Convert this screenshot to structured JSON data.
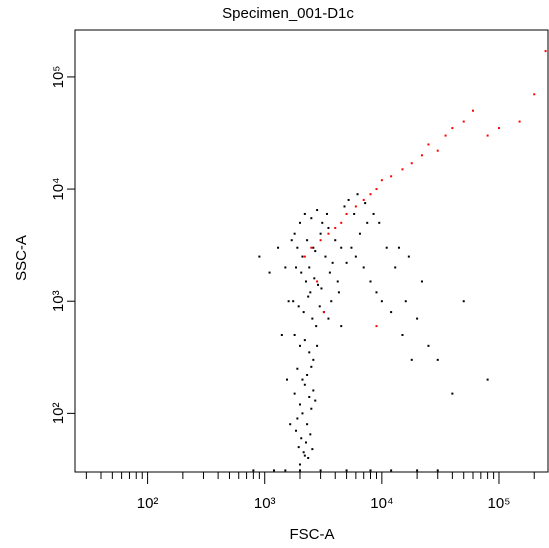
{
  "chart_data": {
    "type": "scatter",
    "title": "Specimen_001-D1c",
    "x_label": "FSC-A",
    "y_label": "SSC-A",
    "log_x": true,
    "log_y": true,
    "xlim": [
      24,
      262144
    ],
    "ylim": [
      30,
      262144
    ],
    "xticks": [
      {
        "value": 100,
        "label": "10²"
      },
      {
        "value": 1000,
        "label": "10³"
      },
      {
        "value": 10000,
        "label": "10⁴"
      },
      {
        "value": 100000,
        "label": "10⁵"
      }
    ],
    "xminorticks": [
      30,
      40,
      50,
      60,
      70,
      80,
      90,
      200,
      300,
      400,
      500,
      600,
      700,
      800,
      900,
      2000,
      3000,
      4000,
      5000,
      6000,
      7000,
      8000,
      9000,
      20000,
      30000,
      40000,
      50000,
      60000,
      70000,
      80000,
      90000,
      200000
    ],
    "yticks": [
      {
        "value": 100,
        "label": "10²"
      },
      {
        "value": 1000,
        "label": "10³"
      },
      {
        "value": 10000,
        "label": "10⁴"
      },
      {
        "value": 100000,
        "label": "10⁵"
      }
    ],
    "series": [
      {
        "color": "#000000",
        "x": [
          1800,
          2000,
          2200,
          2500,
          2800,
          3100,
          3500,
          4000,
          1900,
          2300,
          2600,
          3000,
          3400,
          1700,
          2100,
          2400,
          2700,
          3300,
          3800,
          4500,
          1850,
          2050,
          2250,
          2450,
          2650,
          2850,
          3050,
          3600,
          4200,
          5000,
          1750,
          1950,
          2150,
          2350,
          2550,
          2750,
          2950,
          3200,
          3700,
          4300,
          1800,
          2000,
          2200,
          2400,
          2600,
          2800,
          1900,
          2100,
          2300,
          2500,
          1800,
          2000,
          2200,
          2400,
          2600,
          2100,
          1900,
          2300,
          2500,
          2700,
          1850,
          2050,
          2250,
          2450,
          2150,
          1950,
          2350,
          2550,
          2000,
          2200,
          5500,
          6000,
          7000,
          8000,
          9000,
          10000,
          12000,
          15000,
          18000,
          22000,
          6500,
          7500,
          8500,
          11000,
          13000,
          16000,
          20000,
          25000,
          30000,
          40000,
          4800,
          5200,
          5800,
          6200,
          7200,
          9500,
          14000,
          17000,
          50000,
          80000,
          800,
          1200,
          2000,
          3000,
          5000,
          8000,
          12000,
          20000,
          30000,
          1500,
          1300,
          1500,
          1600,
          1400,
          1550,
          1650,
          900,
          1100,
          3500,
          4500
        ],
        "values": [
          4000,
          5000,
          6000,
          5500,
          6500,
          5000,
          4500,
          3500,
          3000,
          3500,
          3000,
          4000,
          6000,
          3500,
          2500,
          2000,
          2800,
          2500,
          2200,
          3000,
          2000,
          1800,
          1500,
          1200,
          1600,
          1400,
          1300,
          1800,
          1500,
          2200,
          1000,
          900,
          800,
          1100,
          700,
          600,
          900,
          800,
          1000,
          1200,
          500,
          400,
          450,
          350,
          300,
          400,
          250,
          200,
          220,
          260,
          150,
          120,
          180,
          140,
          160,
          100,
          90,
          80,
          110,
          130,
          70,
          60,
          55,
          65,
          45,
          50,
          40,
          48,
          35,
          42,
          3000,
          2500,
          2000,
          1500,
          1200,
          1000,
          800,
          500,
          300,
          1500,
          4000,
          5000,
          6000,
          3000,
          2000,
          1000,
          700,
          400,
          300,
          150,
          7000,
          8000,
          6000,
          9000,
          7500,
          5000,
          3000,
          2500,
          1000,
          200,
          31,
          31,
          31,
          31,
          31,
          31,
          31,
          31,
          31,
          31,
          3000,
          2000,
          1000,
          500,
          200,
          80,
          2500,
          1800,
          700,
          600
        ]
      },
      {
        "color": "#ff0000",
        "x": [
          2500,
          3000,
          3500,
          4000,
          4500,
          5000,
          6000,
          7000,
          8000,
          9000,
          10000,
          12000,
          15000,
          18000,
          22000,
          25000,
          30000,
          35000,
          40000,
          50000,
          60000,
          80000,
          100000,
          150000,
          200000,
          250000,
          2200,
          2800,
          3200,
          9000
        ],
        "values": [
          3000,
          3500,
          4000,
          4500,
          5000,
          6000,
          7000,
          8000,
          9000,
          10000,
          12000,
          13000,
          15000,
          17000,
          20000,
          25000,
          22000,
          30000,
          35000,
          40000,
          50000,
          30000,
          35000,
          40000,
          70000,
          170000,
          2500,
          1500,
          800,
          600
        ]
      }
    ]
  }
}
